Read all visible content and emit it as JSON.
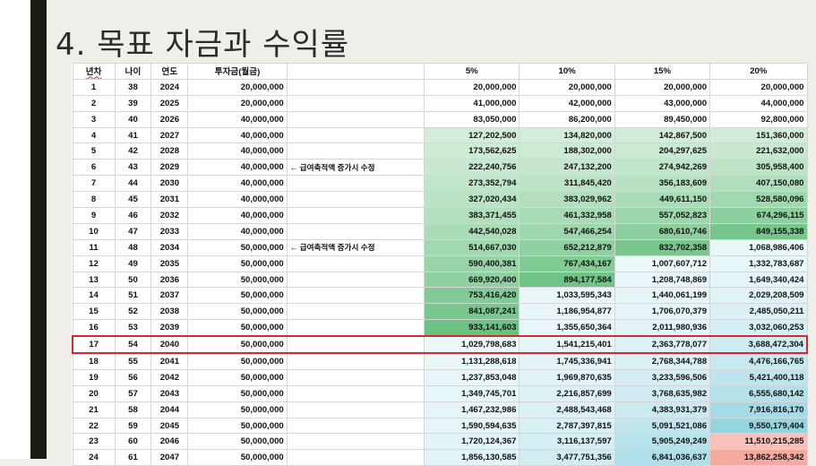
{
  "title": "4. 목표 자금과 수익률",
  "headers": {
    "year_no": "년차",
    "age": "나이",
    "year": "연도",
    "invest": "투자금(월금)",
    "r5": "5%",
    "r10": "10%",
    "r15": "15%",
    "r20": "20%"
  },
  "note_text": "← 급여축적액 증가시 수정",
  "highlight_row": 17,
  "colors": {
    "green": "#63be7b",
    "teal": "#8fd3e0",
    "salmon": "#f4a8a0",
    "highlight_border": "#d62a2a"
  },
  "rows": [
    {
      "n": "1",
      "age": "38",
      "year": "2024",
      "invest": "20,000,000",
      "note": "",
      "v5": "20,000,000",
      "v10": "20,000,000",
      "v15": "20,000,000",
      "v20": "20,000,000"
    },
    {
      "n": "2",
      "age": "39",
      "year": "2025",
      "invest": "20,000,000",
      "note": "",
      "v5": "41,000,000",
      "v10": "42,000,000",
      "v15": "43,000,000",
      "v20": "44,000,000"
    },
    {
      "n": "3",
      "age": "40",
      "year": "2026",
      "invest": "40,000,000",
      "note": "",
      "v5": "83,050,000",
      "v10": "86,200,000",
      "v15": "89,450,000",
      "v20": "92,800,000"
    },
    {
      "n": "4",
      "age": "41",
      "year": "2027",
      "invest": "40,000,000",
      "note": "",
      "v5": "127,202,500",
      "v10": "134,820,000",
      "v15": "142,867,500",
      "v20": "151,360,000"
    },
    {
      "n": "5",
      "age": "42",
      "year": "2028",
      "invest": "40,000,000",
      "note": "",
      "v5": "173,562,625",
      "v10": "188,302,000",
      "v15": "204,297,625",
      "v20": "221,632,000"
    },
    {
      "n": "6",
      "age": "43",
      "year": "2029",
      "invest": "40,000,000",
      "note": "yes",
      "v5": "222,240,756",
      "v10": "247,132,200",
      "v15": "274,942,269",
      "v20": "305,958,400"
    },
    {
      "n": "7",
      "age": "44",
      "year": "2030",
      "invest": "40,000,000",
      "note": "",
      "v5": "273,352,794",
      "v10": "311,845,420",
      "v15": "356,183,609",
      "v20": "407,150,080"
    },
    {
      "n": "8",
      "age": "45",
      "year": "2031",
      "invest": "40,000,000",
      "note": "",
      "v5": "327,020,434",
      "v10": "383,029,962",
      "v15": "449,611,150",
      "v20": "528,580,096"
    },
    {
      "n": "9",
      "age": "46",
      "year": "2032",
      "invest": "40,000,000",
      "note": "",
      "v5": "383,371,455",
      "v10": "461,332,958",
      "v15": "557,052,823",
      "v20": "674,296,115"
    },
    {
      "n": "10",
      "age": "47",
      "year": "2033",
      "invest": "40,000,000",
      "note": "",
      "v5": "442,540,028",
      "v10": "547,466,254",
      "v15": "680,610,746",
      "v20": "849,155,338"
    },
    {
      "n": "11",
      "age": "48",
      "year": "2034",
      "invest": "50,000,000",
      "note": "yes",
      "v5": "514,667,030",
      "v10": "652,212,879",
      "v15": "832,702,358",
      "v20": "1,068,986,406"
    },
    {
      "n": "12",
      "age": "49",
      "year": "2035",
      "invest": "50,000,000",
      "note": "",
      "v5": "590,400,381",
      "v10": "767,434,167",
      "v15": "1,007,607,712",
      "v20": "1,332,783,687"
    },
    {
      "n": "13",
      "age": "50",
      "year": "2036",
      "invest": "50,000,000",
      "note": "",
      "v5": "669,920,400",
      "v10": "894,177,584",
      "v15": "1,208,748,869",
      "v20": "1,649,340,424"
    },
    {
      "n": "14",
      "age": "51",
      "year": "2037",
      "invest": "50,000,000",
      "note": "",
      "v5": "753,416,420",
      "v10": "1,033,595,343",
      "v15": "1,440,061,199",
      "v20": "2,029,208,509"
    },
    {
      "n": "15",
      "age": "52",
      "year": "2038",
      "invest": "50,000,000",
      "note": "",
      "v5": "841,087,241",
      "v10": "1,186,954,877",
      "v15": "1,706,070,379",
      "v20": "2,485,050,211"
    },
    {
      "n": "16",
      "age": "53",
      "year": "2039",
      "invest": "50,000,000",
      "note": "",
      "v5": "933,141,603",
      "v10": "1,355,650,364",
      "v15": "2,011,980,936",
      "v20": "3,032,060,253"
    },
    {
      "n": "17",
      "age": "54",
      "year": "2040",
      "invest": "50,000,000",
      "note": "",
      "v5": "1,029,798,683",
      "v10": "1,541,215,401",
      "v15": "2,363,778,077",
      "v20": "3,688,472,304"
    },
    {
      "n": "18",
      "age": "55",
      "year": "2041",
      "invest": "50,000,000",
      "note": "",
      "v5": "1,131,288,618",
      "v10": "1,745,336,941",
      "v15": "2,768,344,788",
      "v20": "4,476,166,765"
    },
    {
      "n": "19",
      "age": "56",
      "year": "2042",
      "invest": "50,000,000",
      "note": "",
      "v5": "1,237,853,048",
      "v10": "1,969,870,635",
      "v15": "3,233,596,506",
      "v20": "5,421,400,118"
    },
    {
      "n": "20",
      "age": "57",
      "year": "2043",
      "invest": "50,000,000",
      "note": "",
      "v5": "1,349,745,701",
      "v10": "2,216,857,699",
      "v15": "3,768,635,982",
      "v20": "6,555,680,142"
    },
    {
      "n": "21",
      "age": "58",
      "year": "2044",
      "invest": "50,000,000",
      "note": "",
      "v5": "1,467,232,986",
      "v10": "2,488,543,468",
      "v15": "4,383,931,379",
      "v20": "7,916,816,170"
    },
    {
      "n": "22",
      "age": "59",
      "year": "2045",
      "invest": "50,000,000",
      "note": "",
      "v5": "1,590,594,635",
      "v10": "2,787,397,815",
      "v15": "5,091,521,086",
      "v20": "9,550,179,404"
    },
    {
      "n": "23",
      "age": "60",
      "year": "2046",
      "invest": "50,000,000",
      "note": "",
      "v5": "1,720,124,367",
      "v10": "3,116,137,597",
      "v15": "5,905,249,249",
      "v20": "11,510,215,285"
    },
    {
      "n": "24",
      "age": "61",
      "year": "2047",
      "invest": "50,000,000",
      "note": "",
      "v5": "1,856,130,585",
      "v10": "3,477,751,356",
      "v15": "6,841,036,637",
      "v20": "13,862,258,342"
    }
  ]
}
